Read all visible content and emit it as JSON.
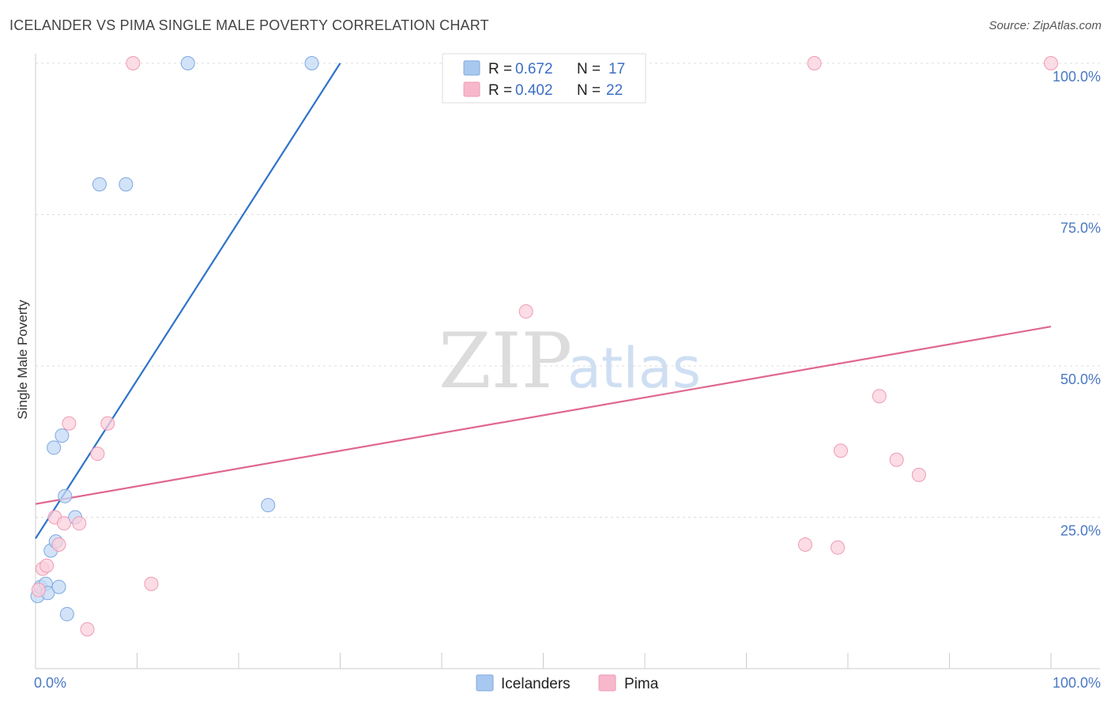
{
  "title": "ICELANDER VS PIMA SINGLE MALE POVERTY CORRELATION CHART",
  "source": "Source: ZipAtlas.com",
  "chart_data": {
    "type": "scatter",
    "ylabel": "Single Male Poverty",
    "xlim": [
      0,
      100
    ],
    "ylim": [
      0,
      100
    ],
    "x_tick_labels": [
      "0.0%",
      "100.0%"
    ],
    "y_tick_labels": [
      {
        "v": 25,
        "label": "25.0%"
      },
      {
        "v": 50,
        "label": "50.0%"
      },
      {
        "v": 75,
        "label": "75.0%"
      },
      {
        "v": 100,
        "label": "100.0%"
      }
    ],
    "legend": [
      {
        "name": "Icelanders",
        "r_label": "R = ",
        "r": "0.672",
        "n_label": "N = ",
        "n": "17",
        "color": "#a9c8ef"
      },
      {
        "name": "Pima",
        "r_label": "R = ",
        "r": "0.402",
        "n_label": "N = ",
        "n": "22",
        "color": "#f7b8cb"
      }
    ],
    "series": [
      {
        "name": "Icelanders",
        "fill": "#c3d9f5",
        "stroke": "#7ea8e0",
        "line_color": "#2f73c9",
        "trend": [
          [
            0,
            21.5
          ],
          [
            30,
            100
          ]
        ],
        "points": [
          [
            0.2,
            12
          ],
          [
            0.5,
            13.5
          ],
          [
            1,
            14
          ],
          [
            1.2,
            12.5
          ],
          [
            1.5,
            19.5
          ],
          [
            1.8,
            36.5
          ],
          [
            2,
            21
          ],
          [
            2.3,
            13.5
          ],
          [
            2.6,
            38.5
          ],
          [
            2.9,
            28.5
          ],
          [
            3.1,
            9
          ],
          [
            3.9,
            25
          ],
          [
            6.3,
            80
          ],
          [
            8.9,
            80
          ],
          [
            15,
            100
          ],
          [
            22.9,
            27
          ],
          [
            27.2,
            100
          ]
        ]
      },
      {
        "name": "Pima",
        "fill": "#fbd0dc",
        "stroke": "#ef9bb4",
        "line_color": "#e0678f",
        "trend": [
          [
            0,
            27.2
          ],
          [
            100,
            56.5
          ]
        ],
        "points": [
          [
            0.3,
            13
          ],
          [
            0.7,
            16.5
          ],
          [
            1.1,
            17
          ],
          [
            1.9,
            25
          ],
          [
            2.3,
            20.5
          ],
          [
            2.8,
            24
          ],
          [
            3.3,
            40.5
          ],
          [
            4.3,
            24
          ],
          [
            5.1,
            6.5
          ],
          [
            6.1,
            35.5
          ],
          [
            7.1,
            40.5
          ],
          [
            9.6,
            100
          ],
          [
            11.4,
            14
          ],
          [
            48.3,
            59
          ],
          [
            75.8,
            20.5
          ],
          [
            76.7,
            100
          ],
          [
            79,
            20
          ],
          [
            79.3,
            36
          ],
          [
            83.1,
            45
          ],
          [
            84.8,
            34.5
          ],
          [
            87,
            32
          ],
          [
            100,
            100
          ]
        ]
      }
    ]
  },
  "watermark": {
    "part1": "ZIP",
    "part2": "atlas"
  }
}
